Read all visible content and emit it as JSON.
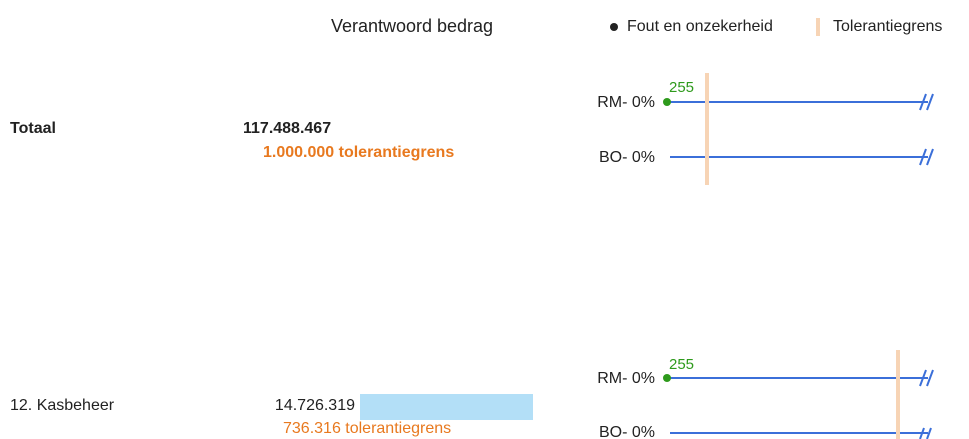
{
  "header": {
    "column_title": "Verantwoord bedrag",
    "legend": [
      "Fout en onzekerheid",
      "Tolerantiegrens"
    ]
  },
  "rows": [
    {
      "label": "Totaal",
      "amount": "117.488.467",
      "tolerance": "1.000.000 tolerantiegrens",
      "lines": [
        {
          "label": "RM- 0%",
          "point_label": 255
        },
        {
          "label": "BO- 0%"
        }
      ]
    },
    {
      "label": "12. Kasbeheer",
      "amount": "14.726.319",
      "tolerance": "736.316 tolerantiegrens",
      "lines": [
        {
          "label": "RM- 0%",
          "point_label": 255
        },
        {
          "label": "BO- 0%"
        }
      ]
    }
  ]
}
